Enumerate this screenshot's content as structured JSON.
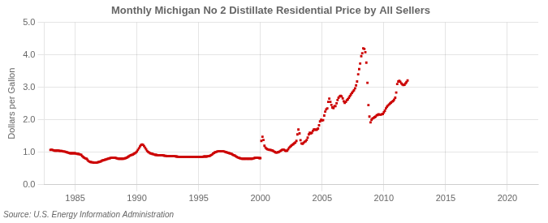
{
  "chart_data": {
    "type": "scatter",
    "title": "Monthly Michigan No 2 Distillate Residential Price by All Sellers",
    "ylabel": "Dollars per Gallon",
    "annotation": "Source: U.S. Energy Information Administration",
    "color": "#cc0000",
    "marker": "square",
    "grid": true,
    "xlim": [
      1982.5,
      2022.5
    ],
    "ylim": [
      0.0,
      5.0
    ],
    "xticks": [
      1985,
      1990,
      1995,
      2000,
      2005,
      2010,
      2015,
      2020
    ],
    "yticks": [
      {
        "value": 0.0,
        "label": "0.0"
      },
      {
        "value": 1.0,
        "label": "1.0"
      },
      {
        "value": 2.0,
        "label": "2.0"
      },
      {
        "value": 3.0,
        "label": "3.0"
      },
      {
        "value": 4.0,
        "label": "4.0"
      },
      {
        "value": 5.0,
        "label": "5.0"
      }
    ],
    "x": [
      1983.0,
      1983.08,
      1983.17,
      1983.25,
      1983.33,
      1983.42,
      1983.5,
      1983.58,
      1983.67,
      1983.75,
      1983.83,
      1983.92,
      1984.0,
      1984.08,
      1984.17,
      1984.25,
      1984.33,
      1984.42,
      1984.5,
      1984.58,
      1984.67,
      1984.75,
      1984.83,
      1984.92,
      1985.0,
      1985.08,
      1985.17,
      1985.25,
      1985.33,
      1985.42,
      1985.5,
      1985.58,
      1985.67,
      1985.75,
      1985.83,
      1985.92,
      1986.0,
      1986.08,
      1986.17,
      1986.25,
      1986.33,
      1986.42,
      1986.5,
      1986.58,
      1986.67,
      1986.75,
      1986.83,
      1986.92,
      1987.0,
      1987.08,
      1987.17,
      1987.25,
      1987.33,
      1987.42,
      1987.5,
      1987.58,
      1987.67,
      1987.75,
      1987.83,
      1987.92,
      1988.0,
      1988.08,
      1988.17,
      1988.25,
      1988.33,
      1988.42,
      1988.5,
      1988.58,
      1988.67,
      1988.75,
      1988.83,
      1988.92,
      1989.0,
      1989.08,
      1989.17,
      1989.25,
      1989.33,
      1989.42,
      1989.5,
      1989.58,
      1989.67,
      1989.75,
      1989.83,
      1989.92,
      1990.0,
      1990.08,
      1990.17,
      1990.25,
      1990.33,
      1990.42,
      1990.5,
      1990.58,
      1990.67,
      1990.75,
      1990.83,
      1990.92,
      1991.0,
      1991.08,
      1991.17,
      1991.25,
      1991.33,
      1991.42,
      1991.5,
      1991.58,
      1991.67,
      1991.75,
      1991.83,
      1991.92,
      1992.0,
      1992.08,
      1992.17,
      1992.25,
      1992.33,
      1992.42,
      1992.5,
      1992.58,
      1992.67,
      1992.75,
      1992.83,
      1992.92,
      1993.0,
      1993.08,
      1993.17,
      1993.25,
      1993.33,
      1993.42,
      1993.5,
      1993.58,
      1993.67,
      1993.75,
      1993.83,
      1993.92,
      1994.0,
      1994.08,
      1994.17,
      1994.25,
      1994.33,
      1994.42,
      1994.5,
      1994.58,
      1994.67,
      1994.75,
      1994.83,
      1994.92,
      1995.0,
      1995.08,
      1995.17,
      1995.25,
      1995.33,
      1995.42,
      1995.5,
      1995.58,
      1995.67,
      1995.75,
      1995.83,
      1995.92,
      1996.0,
      1996.08,
      1996.17,
      1996.25,
      1996.33,
      1996.42,
      1996.5,
      1996.58,
      1996.67,
      1996.75,
      1996.83,
      1996.92,
      1997.0,
      1997.08,
      1997.17,
      1997.25,
      1997.33,
      1997.42,
      1997.5,
      1997.58,
      1997.67,
      1997.75,
      1997.83,
      1997.92,
      1998.0,
      1998.08,
      1998.17,
      1998.25,
      1998.33,
      1998.42,
      1998.5,
      1998.58,
      1998.67,
      1998.75,
      1998.83,
      1998.92,
      1999.0,
      1999.08,
      1999.17,
      1999.25,
      1999.33,
      1999.42,
      1999.5,
      1999.58,
      1999.67,
      1999.75,
      1999.83,
      1999.92,
      2000.0,
      2000.08,
      2000.17,
      2000.25,
      2000.33,
      2000.42,
      2000.5,
      2000.58,
      2000.67,
      2000.75,
      2000.83,
      2000.92,
      2001.0,
      2001.08,
      2001.17,
      2001.25,
      2001.33,
      2001.42,
      2001.5,
      2001.58,
      2001.67,
      2001.75,
      2001.83,
      2001.92,
      2002.0,
      2002.08,
      2002.17,
      2002.25,
      2002.33,
      2002.42,
      2002.5,
      2002.58,
      2002.67,
      2002.75,
      2002.83,
      2002.92,
      2003.0,
      2003.08,
      2003.17,
      2003.25,
      2003.33,
      2003.42,
      2003.5,
      2003.58,
      2003.67,
      2003.75,
      2003.83,
      2003.92,
      2004.0,
      2004.08,
      2004.17,
      2004.25,
      2004.33,
      2004.42,
      2004.5,
      2004.58,
      2004.67,
      2004.75,
      2004.83,
      2004.92,
      2005.0,
      2005.08,
      2005.17,
      2005.25,
      2005.33,
      2005.42,
      2005.5,
      2005.58,
      2005.67,
      2005.75,
      2005.83,
      2005.92,
      2006.0,
      2006.08,
      2006.17,
      2006.25,
      2006.33,
      2006.42,
      2006.5,
      2006.58,
      2006.67,
      2006.75,
      2006.83,
      2006.92,
      2007.0,
      2007.08,
      2007.17,
      2007.25,
      2007.33,
      2007.42,
      2007.5,
      2007.58,
      2007.67,
      2007.75,
      2007.83,
      2007.92,
      2008.0,
      2008.08,
      2008.17,
      2008.25,
      2008.33,
      2008.42,
      2008.5,
      2008.58,
      2008.67,
      2008.75,
      2008.83,
      2008.92,
      2009.0,
      2009.08,
      2009.17,
      2009.25,
      2009.33,
      2009.42,
      2009.5,
      2009.58,
      2009.67,
      2009.75,
      2009.83,
      2009.92,
      2010.0,
      2010.08,
      2010.17,
      2010.25,
      2010.33,
      2010.42,
      2010.5,
      2010.58,
      2010.67,
      2010.75,
      2010.83,
      2010.92,
      2011.0,
      2011.08,
      2011.17,
      2011.25,
      2011.33,
      2011.42,
      2011.5,
      2011.58,
      2011.67,
      2011.75,
      2011.83,
      2011.92
    ],
    "values": [
      1.07,
      1.08,
      1.07,
      1.06,
      1.05,
      1.05,
      1.05,
      1.05,
      1.05,
      1.04,
      1.04,
      1.04,
      1.03,
      1.02,
      1.02,
      1.01,
      1.0,
      0.99,
      0.98,
      0.97,
      0.97,
      0.97,
      0.97,
      0.97,
      0.97,
      0.96,
      0.95,
      0.95,
      0.94,
      0.93,
      0.92,
      0.88,
      0.85,
      0.83,
      0.81,
      0.8,
      0.77,
      0.73,
      0.71,
      0.7,
      0.69,
      0.69,
      0.68,
      0.68,
      0.68,
      0.68,
      0.69,
      0.7,
      0.71,
      0.72,
      0.74,
      0.75,
      0.76,
      0.77,
      0.78,
      0.79,
      0.8,
      0.81,
      0.82,
      0.83,
      0.83,
      0.83,
      0.83,
      0.83,
      0.82,
      0.81,
      0.8,
      0.8,
      0.8,
      0.8,
      0.8,
      0.8,
      0.81,
      0.82,
      0.83,
      0.85,
      0.87,
      0.89,
      0.91,
      0.92,
      0.93,
      0.95,
      0.97,
      0.99,
      1.02,
      1.07,
      1.12,
      1.18,
      1.22,
      1.24,
      1.23,
      1.19,
      1.14,
      1.09,
      1.04,
      1.01,
      0.99,
      0.97,
      0.96,
      0.95,
      0.94,
      0.93,
      0.92,
      0.92,
      0.91,
      0.91,
      0.91,
      0.91,
      0.91,
      0.91,
      0.9,
      0.89,
      0.89,
      0.88,
      0.88,
      0.88,
      0.88,
      0.88,
      0.88,
      0.88,
      0.88,
      0.88,
      0.87,
      0.87,
      0.86,
      0.86,
      0.86,
      0.86,
      0.86,
      0.86,
      0.86,
      0.86,
      0.86,
      0.86,
      0.86,
      0.86,
      0.86,
      0.86,
      0.86,
      0.86,
      0.86,
      0.86,
      0.86,
      0.86,
      0.86,
      0.86,
      0.86,
      0.86,
      0.86,
      0.87,
      0.87,
      0.87,
      0.87,
      0.88,
      0.88,
      0.89,
      0.91,
      0.93,
      0.96,
      0.98,
      1.0,
      1.01,
      1.02,
      1.03,
      1.03,
      1.03,
      1.03,
      1.03,
      1.03,
      1.02,
      1.01,
      1.0,
      0.99,
      0.98,
      0.97,
      0.96,
      0.95,
      0.93,
      0.91,
      0.9,
      0.88,
      0.86,
      0.84,
      0.83,
      0.82,
      0.81,
      0.8,
      0.8,
      0.8,
      0.8,
      0.8,
      0.8,
      0.8,
      0.8,
      0.8,
      0.8,
      0.8,
      0.81,
      0.82,
      0.83,
      0.83,
      0.83,
      0.83,
      0.82,
      0.82,
      1.35,
      1.48,
      1.38,
      1.2,
      1.14,
      1.11,
      1.09,
      1.08,
      1.07,
      1.07,
      1.06,
      1.05,
      1.03,
      1.01,
      0.99,
      0.99,
      1.0,
      1.01,
      1.03,
      1.05,
      1.07,
      1.08,
      1.08,
      1.05,
      1.04,
      1.05,
      1.09,
      1.14,
      1.17,
      1.2,
      1.23,
      1.25,
      1.28,
      1.3,
      1.35,
      1.55,
      1.7,
      1.58,
      1.37,
      1.27,
      1.26,
      1.29,
      1.32,
      1.34,
      1.38,
      1.45,
      1.55,
      1.6,
      1.58,
      1.6,
      1.66,
      1.7,
      1.7,
      1.69,
      1.7,
      1.73,
      1.83,
      1.95,
      2.0,
      1.98,
      1.99,
      2.13,
      2.25,
      2.32,
      2.35,
      2.55,
      2.65,
      2.55,
      2.46,
      2.38,
      2.36,
      2.42,
      2.42,
      2.51,
      2.61,
      2.68,
      2.72,
      2.74,
      2.72,
      2.66,
      2.57,
      2.52,
      2.55,
      2.6,
      2.63,
      2.68,
      2.73,
      2.78,
      2.83,
      2.87,
      2.91,
      2.97,
      3.06,
      3.18,
      3.4,
      3.56,
      3.73,
      3.96,
      4.05,
      4.2,
      4.18,
      4.08,
      3.76,
      3.14,
      2.45,
      2.1,
      1.92,
      2.0,
      2.04,
      2.06,
      2.08,
      2.1,
      2.14,
      2.15,
      2.17,
      2.16,
      2.16,
      2.17,
      2.18,
      2.23,
      2.28,
      2.35,
      2.4,
      2.44,
      2.47,
      2.5,
      2.53,
      2.56,
      2.58,
      2.62,
      2.68,
      2.84,
      3.1,
      3.18,
      3.2,
      3.17,
      3.12,
      3.09,
      3.07,
      3.08,
      3.12,
      3.16,
      3.21
    ]
  }
}
